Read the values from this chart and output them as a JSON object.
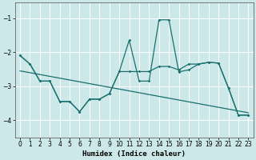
{
  "xlabel": "Humidex (Indice chaleur)",
  "bg_color": "#cce8e8",
  "grid_color": "#ffffff",
  "line_color": "#1a7070",
  "xlim": [
    -0.5,
    23.5
  ],
  "ylim": [
    -4.5,
    -0.55
  ],
  "yticks": [
    -4,
    -3,
    -2,
    -1
  ],
  "xticks": [
    0,
    1,
    2,
    3,
    4,
    5,
    6,
    7,
    8,
    9,
    10,
    11,
    12,
    13,
    14,
    15,
    16,
    17,
    18,
    19,
    20,
    21,
    22,
    23
  ],
  "line1_x": [
    0,
    1,
    2,
    3,
    4,
    5,
    6,
    7,
    8,
    9,
    10,
    11,
    12,
    13,
    14,
    15,
    16,
    17,
    18,
    19,
    20,
    21,
    22,
    23
  ],
  "line1_y": [
    -2.1,
    -2.35,
    -2.85,
    -2.85,
    -3.45,
    -3.45,
    -3.75,
    -3.38,
    -3.38,
    -3.22,
    -2.57,
    -1.65,
    -2.85,
    -2.85,
    -1.05,
    -1.05,
    -2.58,
    -2.52,
    -2.35,
    -2.3,
    -2.32,
    -3.05,
    -3.85,
    -3.85
  ],
  "line2_x": [
    0,
    1,
    2,
    3,
    4,
    5,
    6,
    7,
    8,
    9,
    10,
    11,
    12,
    13,
    14,
    15,
    16,
    17,
    18,
    19,
    20,
    21,
    22,
    23
  ],
  "line2_y": [
    -2.1,
    -2.35,
    -2.85,
    -2.85,
    -3.45,
    -3.45,
    -3.75,
    -3.38,
    -3.38,
    -3.22,
    -2.57,
    -2.57,
    -2.57,
    -2.57,
    -2.42,
    -2.42,
    -2.52,
    -2.35,
    -2.35,
    -2.3,
    -2.32,
    -3.05,
    -3.85,
    -3.85
  ],
  "trend_x": [
    0,
    23
  ],
  "trend_y": [
    -2.55,
    -3.78
  ]
}
